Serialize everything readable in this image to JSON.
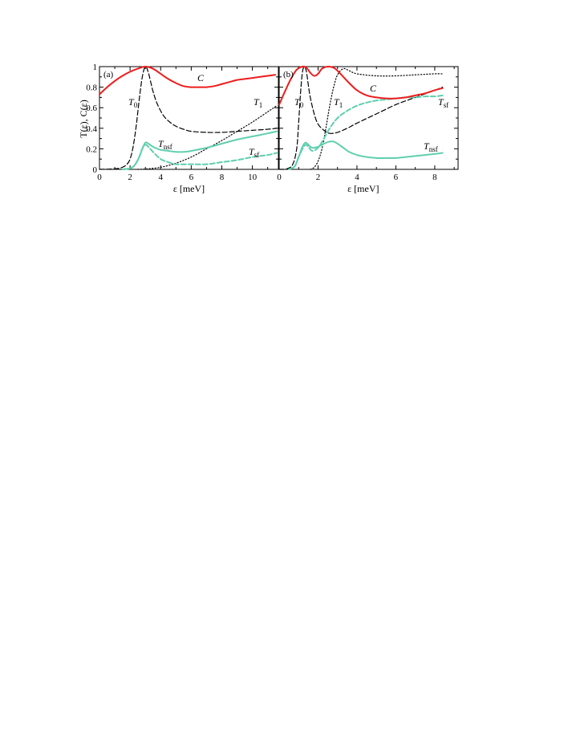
{
  "chart_data": [
    {
      "type": "line",
      "panel_label": "(a)",
      "xlabel": "ε [meV]",
      "ylabel": "T(ε),  C(ε)",
      "xlim": [
        0,
        11.7
      ],
      "ylim": [
        0,
        1
      ],
      "xticks": [
        0,
        2,
        4,
        6,
        8,
        10
      ],
      "yticks": [
        0,
        0.2,
        0.4,
        0.6,
        0.8,
        1
      ],
      "ytick_labels": [
        "0",
        "0.2",
        "0.4",
        "0.6",
        "0.8",
        "1"
      ],
      "series": [
        {
          "key": "C",
          "name": "C",
          "sub": "",
          "color": "#ee1c1c",
          "style": "solid",
          "width": 2,
          "x": [
            0,
            0.5,
            1,
            1.5,
            2,
            2.5,
            3,
            3.5,
            4,
            4.5,
            5,
            5.5,
            6,
            6.5,
            7,
            7.5,
            8,
            8.5,
            9,
            9.5,
            10,
            10.5,
            11,
            11.5
          ],
          "y": [
            0.73,
            0.8,
            0.86,
            0.91,
            0.95,
            0.98,
            1.0,
            0.98,
            0.93,
            0.88,
            0.84,
            0.81,
            0.8,
            0.8,
            0.8,
            0.81,
            0.83,
            0.85,
            0.87,
            0.88,
            0.89,
            0.9,
            0.91,
            0.92
          ]
        },
        {
          "key": "T0",
          "name": "T",
          "sub": "0",
          "color": "#000000",
          "style": "dash",
          "width": 1.2,
          "x": [
            0,
            1,
            1.5,
            1.8,
            2.0,
            2.2,
            2.4,
            2.6,
            2.8,
            3.0,
            3.2,
            3.5,
            3.8,
            4.2,
            4.6,
            5,
            5.5,
            6,
            7,
            8,
            9,
            10,
            11,
            11.6
          ],
          "y": [
            0,
            0.005,
            0.02,
            0.05,
            0.1,
            0.22,
            0.42,
            0.68,
            0.9,
            1.0,
            0.94,
            0.76,
            0.63,
            0.52,
            0.46,
            0.42,
            0.39,
            0.37,
            0.36,
            0.36,
            0.37,
            0.38,
            0.39,
            0.4
          ]
        },
        {
          "key": "T1",
          "name": "T",
          "sub": "1",
          "color": "#000000",
          "style": "dot",
          "width": 1.2,
          "x": [
            2.5,
            3,
            4,
            5,
            6,
            7,
            8,
            9,
            10,
            11,
            11.6
          ],
          "y": [
            0,
            0.003,
            0.02,
            0.06,
            0.12,
            0.2,
            0.28,
            0.37,
            0.46,
            0.56,
            0.62
          ]
        },
        {
          "key": "Tnsf",
          "name": "T",
          "sub": "nsf",
          "color": "#5fcfae",
          "style": "solid",
          "width": 2,
          "x": [
            1.5,
            2.0,
            2.3,
            2.6,
            2.8,
            3.0,
            3.2,
            3.5,
            4,
            4.5,
            5,
            5.5,
            6,
            7,
            8,
            9,
            10,
            11,
            11.6
          ],
          "y": [
            0,
            0.01,
            0.04,
            0.12,
            0.2,
            0.26,
            0.25,
            0.22,
            0.19,
            0.18,
            0.17,
            0.17,
            0.18,
            0.21,
            0.25,
            0.29,
            0.32,
            0.35,
            0.37
          ]
        },
        {
          "key": "Tsf",
          "name": "T",
          "sub": "sf",
          "color": "#5fcfae",
          "style": "dash",
          "width": 2,
          "x": [
            1.5,
            2.0,
            2.3,
            2.6,
            2.8,
            3.0,
            3.2,
            3.5,
            4,
            4.5,
            5,
            6,
            7,
            8,
            9,
            10,
            11,
            11.6
          ],
          "y": [
            0,
            0.01,
            0.04,
            0.12,
            0.2,
            0.24,
            0.22,
            0.17,
            0.1,
            0.07,
            0.05,
            0.05,
            0.05,
            0.07,
            0.09,
            0.12,
            0.14,
            0.16
          ]
        }
      ]
    },
    {
      "type": "line",
      "panel_label": "(b)",
      "xlabel": "ε [meV]",
      "ylabel": "",
      "xlim": [
        0,
        9.2
      ],
      "ylim": [
        0,
        1
      ],
      "xticks": [
        0,
        2,
        4,
        6,
        8
      ],
      "yticks": [
        0,
        0.2,
        0.4,
        0.6,
        0.8,
        1
      ],
      "ytick_labels": [
        "",
        "",
        "",
        "",
        "",
        ""
      ],
      "series": [
        {
          "key": "C",
          "name": "C",
          "sub": "",
          "color": "#ee1c1c",
          "style": "solid",
          "width": 2,
          "x": [
            0,
            0.3,
            0.6,
            0.9,
            1.2,
            1.4,
            1.6,
            1.8,
            2.0,
            2.2,
            2.5,
            2.8,
            3.0,
            3.3,
            3.6,
            4.0,
            4.5,
            5,
            5.5,
            6,
            6.5,
            7,
            7.5,
            8,
            8.4
          ],
          "y": [
            0.63,
            0.76,
            0.88,
            0.97,
            1.0,
            0.99,
            0.94,
            0.91,
            0.93,
            0.98,
            1.0,
            0.99,
            0.96,
            0.9,
            0.84,
            0.77,
            0.72,
            0.7,
            0.69,
            0.69,
            0.7,
            0.72,
            0.74,
            0.77,
            0.79
          ]
        },
        {
          "key": "T0",
          "name": "T",
          "sub": "0",
          "color": "#000000",
          "style": "dash",
          "width": 1.2,
          "x": [
            0,
            0.4,
            0.7,
            0.9,
            1.0,
            1.1,
            1.2,
            1.3,
            1.4,
            1.5,
            1.6,
            1.8,
            2.0,
            2.3,
            2.6,
            3.0,
            3.5,
            4,
            5,
            6,
            7,
            8,
            8.4
          ],
          "y": [
            0,
            0.005,
            0.05,
            0.2,
            0.45,
            0.75,
            0.95,
            1.0,
            0.95,
            0.82,
            0.7,
            0.54,
            0.44,
            0.38,
            0.35,
            0.36,
            0.4,
            0.45,
            0.54,
            0.63,
            0.7,
            0.77,
            0.8
          ]
        },
        {
          "key": "T1",
          "name": "T",
          "sub": "1",
          "color": "#000000",
          "style": "dot",
          "width": 1.2,
          "x": [
            1.6,
            1.8,
            2.0,
            2.2,
            2.4,
            2.6,
            2.8,
            3.0,
            3.3,
            3.6,
            4,
            5,
            6,
            7,
            8,
            8.4
          ],
          "y": [
            0,
            0.02,
            0.08,
            0.2,
            0.4,
            0.62,
            0.8,
            0.92,
            0.98,
            0.96,
            0.93,
            0.91,
            0.91,
            0.92,
            0.93,
            0.93
          ]
        },
        {
          "key": "Tnsf",
          "name": "T",
          "sub": "nsf",
          "color": "#5fcfae",
          "style": "solid",
          "width": 2,
          "x": [
            0.5,
            0.8,
            1.0,
            1.2,
            1.35,
            1.5,
            1.7,
            2.0,
            2.3,
            2.6,
            2.8,
            3.0,
            3.3,
            3.6,
            4,
            4.5,
            5,
            5.5,
            6,
            6.5,
            7,
            7.5,
            8,
            8.4
          ],
          "y": [
            0,
            0.03,
            0.12,
            0.22,
            0.26,
            0.24,
            0.21,
            0.22,
            0.25,
            0.27,
            0.27,
            0.25,
            0.21,
            0.17,
            0.14,
            0.12,
            0.11,
            0.11,
            0.11,
            0.12,
            0.13,
            0.14,
            0.15,
            0.16
          ]
        },
        {
          "key": "Tsf",
          "name": "T",
          "sub": "sf",
          "color": "#5fcfae",
          "style": "dash",
          "width": 2,
          "x": [
            0.5,
            0.8,
            1.0,
            1.2,
            1.35,
            1.5,
            1.7,
            2.0,
            2.3,
            2.6,
            3.0,
            3.5,
            4,
            4.5,
            5,
            5.5,
            6,
            6.5,
            7,
            7.5,
            8,
            8.4
          ],
          "y": [
            0,
            0.03,
            0.12,
            0.2,
            0.24,
            0.22,
            0.18,
            0.21,
            0.3,
            0.4,
            0.5,
            0.57,
            0.62,
            0.65,
            0.67,
            0.68,
            0.69,
            0.7,
            0.7,
            0.71,
            0.71,
            0.72
          ]
        }
      ]
    }
  ]
}
